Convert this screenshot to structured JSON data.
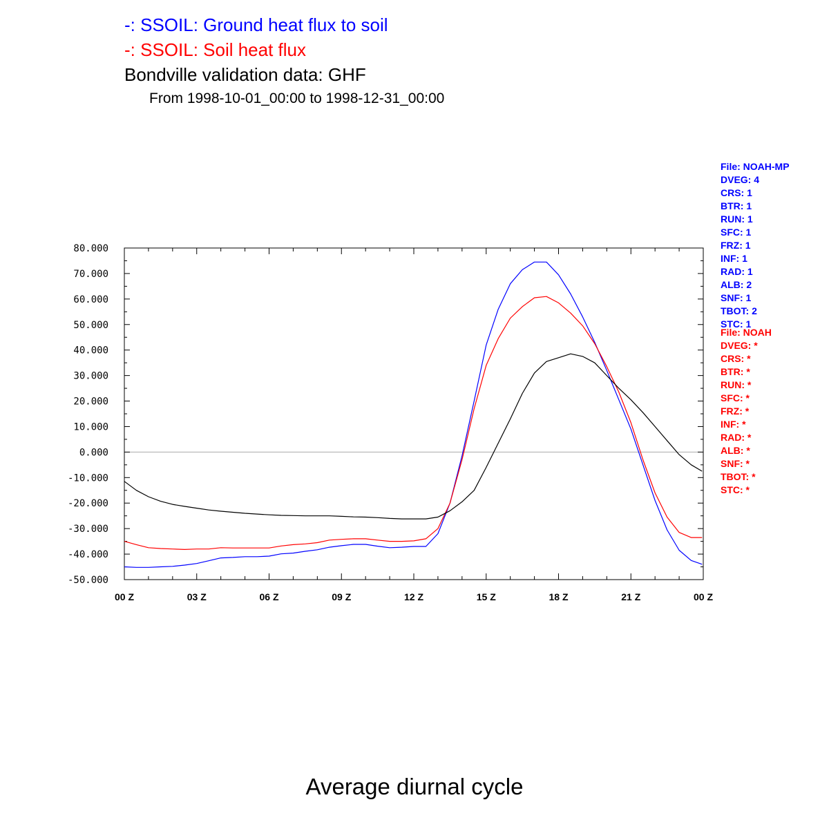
{
  "titles": {
    "line1": "-: SSOIL: Ground heat flux to soil",
    "line2": "-: SSOIL: Soil heat flux",
    "line3": "Bondville validation data: GHF",
    "line4": "From 1998-10-01_00:00 to 1998-12-31_00:00",
    "bottom": "Average diurnal cycle"
  },
  "info_blue": [
    "File: NOAH-MP",
    "DVEG: 4",
    "CRS: 1",
    "BTR: 1",
    "RUN: 1",
    "SFC: 1",
    "FRZ: 1",
    "INF: 1",
    "RAD: 1",
    "ALB: 2",
    "SNF: 1",
    "TBOT: 2",
    "STC: 1"
  ],
  "info_red": [
    "File: NOAH",
    "DVEG: *",
    "CRS: *",
    "BTR: *",
    "RUN: *",
    "SFC: *",
    "FRZ: *",
    "INF: *",
    "RAD: *",
    "ALB: *",
    "SNF: *",
    "TBOT: *",
    "STC: *"
  ],
  "chart_data": {
    "type": "line",
    "xlim": [
      0,
      24
    ],
    "ylim": [
      -50,
      80
    ],
    "x_ticks": [
      0,
      3,
      6,
      9,
      12,
      15,
      18,
      21,
      24
    ],
    "x_tick_labels": [
      "00 Z",
      "03 Z",
      "06 Z",
      "09 Z",
      "12 Z",
      "15 Z",
      "18 Z",
      "21 Z",
      "00 Z"
    ],
    "y_ticks": [
      -50,
      -40,
      -30,
      -20,
      -10,
      0,
      10,
      20,
      30,
      40,
      50,
      60,
      70,
      80
    ],
    "y_tick_labels": [
      "-50.000",
      "-40.000",
      "-30.000",
      "-20.000",
      "-10.000",
      "0.000",
      "10.000",
      "20.000",
      "30.000",
      "40.000",
      "50.000",
      "60.000",
      "70.000",
      "80.000"
    ],
    "zero_line": true,
    "series": [
      {
        "color": "#0000ff",
        "x": [
          0,
          0.5,
          1,
          1.5,
          2,
          2.5,
          3,
          3.5,
          4,
          4.5,
          5,
          5.5,
          6,
          6.5,
          7,
          7.5,
          8,
          8.5,
          9,
          9.5,
          10,
          10.5,
          11,
          11.5,
          12,
          12.5,
          13,
          13.5,
          14,
          14.5,
          15,
          15.5,
          16,
          16.5,
          17,
          17.5,
          18,
          18.5,
          19,
          19.5,
          20,
          20.5,
          21,
          21.5,
          22,
          22.5,
          23,
          23.5,
          23.95
        ],
        "y": [
          -45.0,
          -45.2,
          -45.2,
          -45.0,
          -44.8,
          -44.3,
          -43.7,
          -42.6,
          -41.5,
          -41.3,
          -41.0,
          -41.0,
          -40.8,
          -39.9,
          -39.6,
          -38.9,
          -38.3,
          -37.3,
          -36.7,
          -36.2,
          -36.2,
          -36.9,
          -37.5,
          -37.3,
          -37.0,
          -37.0,
          -32.0,
          -20.0,
          -1.5,
          20.0,
          42.0,
          56.0,
          66.0,
          71.5,
          74.5,
          74.5,
          69.5,
          62.0,
          53.0,
          43.0,
          32.0,
          20.5,
          9.0,
          -5.0,
          -19.0,
          -30.5,
          -38.5,
          -42.5,
          -44.0
        ]
      },
      {
        "color": "#ff0000",
        "x": [
          0,
          0.5,
          1,
          1.5,
          2,
          2.5,
          3,
          3.5,
          4,
          4.5,
          5,
          5.5,
          6,
          6.5,
          7,
          7.5,
          8,
          8.5,
          9,
          9.5,
          10,
          10.5,
          11,
          11.5,
          12,
          12.5,
          13,
          13.5,
          14,
          14.5,
          15,
          15.5,
          16,
          16.5,
          17,
          17.5,
          18,
          18.5,
          19,
          19.5,
          20,
          20.5,
          21,
          21.5,
          22,
          22.5,
          23,
          23.5,
          23.95
        ],
        "y": [
          -35.0,
          -36.3,
          -37.5,
          -37.8,
          -38.0,
          -38.2,
          -38.0,
          -38.0,
          -37.5,
          -37.6,
          -37.6,
          -37.6,
          -37.6,
          -36.8,
          -36.3,
          -36.0,
          -35.5,
          -34.5,
          -34.2,
          -34.0,
          -34.0,
          -34.5,
          -35.0,
          -35.0,
          -34.8,
          -34.0,
          -30.0,
          -20.0,
          -3.0,
          17.0,
          34.0,
          44.5,
          52.5,
          57.0,
          60.5,
          61.0,
          58.5,
          54.5,
          49.5,
          42.5,
          33.5,
          23.5,
          11.5,
          -3.0,
          -16.0,
          -25.5,
          -31.5,
          -33.5,
          -33.5
        ]
      },
      {
        "color": "#000000",
        "x": [
          0,
          0.5,
          1,
          1.5,
          2,
          2.5,
          3,
          3.5,
          4,
          4.5,
          5,
          5.5,
          6,
          6.5,
          7,
          7.5,
          8,
          8.5,
          9,
          9.5,
          10,
          10.5,
          11,
          11.5,
          12,
          12.5,
          13,
          13.5,
          14,
          14.5,
          15,
          15.5,
          16,
          16.5,
          17,
          17.5,
          18,
          18.5,
          19,
          19.5,
          20,
          20.5,
          21,
          21.5,
          22,
          22.5,
          23,
          23.5,
          23.95
        ],
        "y": [
          -11.5,
          -15.0,
          -17.5,
          -19.3,
          -20.5,
          -21.3,
          -22.0,
          -22.7,
          -23.2,
          -23.6,
          -24.0,
          -24.3,
          -24.6,
          -24.8,
          -24.9,
          -25.0,
          -25.0,
          -25.0,
          -25.2,
          -25.4,
          -25.5,
          -25.7,
          -26.0,
          -26.2,
          -26.2,
          -26.2,
          -25.5,
          -23.0,
          -19.5,
          -15.0,
          -6.0,
          3.5,
          13.0,
          23.0,
          31.0,
          35.5,
          37.0,
          38.5,
          37.5,
          35.0,
          30.0,
          25.0,
          20.5,
          15.5,
          10.0,
          4.5,
          -1.0,
          -5.0,
          -7.5
        ]
      }
    ]
  }
}
